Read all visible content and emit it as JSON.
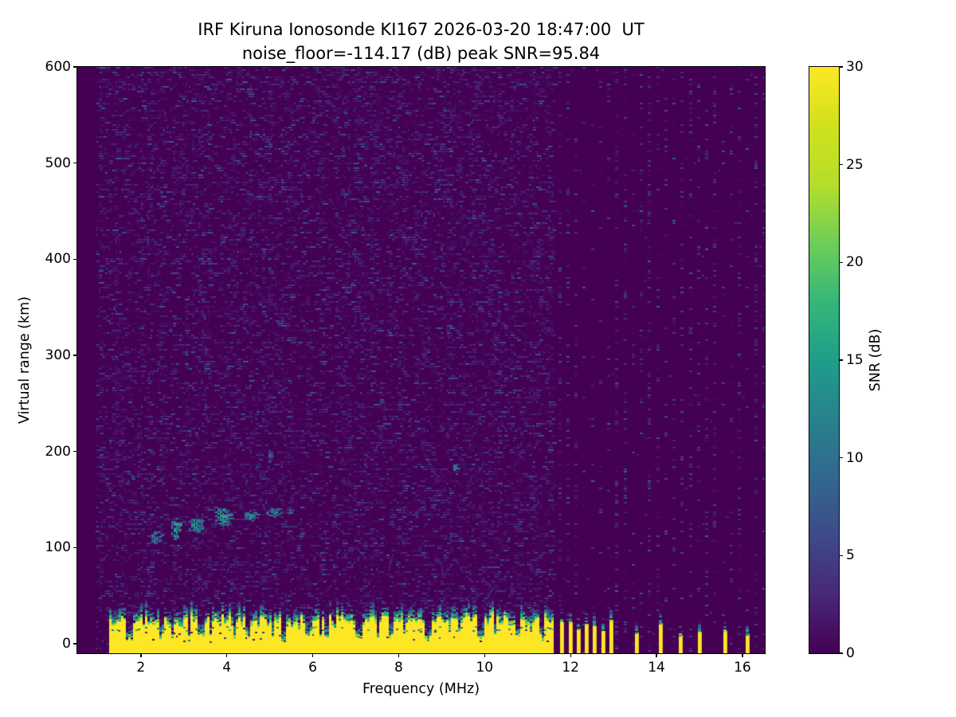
{
  "chart_data": {
    "type": "heatmap",
    "title_line1": "IRF Kiruna Ionosonde KI167 2026-03-20 18:47:00  UT",
    "title_line2": "noise_floor=-114.17 (dB) peak SNR=95.84",
    "station": "IRF Kiruna Ionosonde KI167",
    "timestamp_ut": "2026-03-20 18:47:00",
    "noise_floor_db": -114.17,
    "peak_snr_db": 95.84,
    "xlabel": "Frequency (MHz)",
    "ylabel": "Virtual range (km)",
    "colorbar_label": "SNR (dB)",
    "colormap": "viridis",
    "xlim": [
      0.52,
      16.52
    ],
    "ylim": [
      -10,
      600
    ],
    "clim": [
      0,
      30
    ],
    "xticks": [
      2,
      4,
      6,
      8,
      10,
      12,
      14,
      16
    ],
    "yticks": [
      0,
      100,
      200,
      300,
      400,
      500,
      600
    ],
    "colorbar_ticks": [
      0,
      5,
      10,
      15,
      20,
      25,
      30
    ],
    "features": {
      "data_start_mhz": 0.97,
      "noise": {
        "left_region_end_mhz": 11.58,
        "right_columns_start_mhz": 11.72,
        "right_column_spacing_mhz": 0.19,
        "typical_speckle_db": [
          0,
          8
        ]
      },
      "ground_band": {
        "freq_start_mhz": 1.28,
        "freq_end_mhz": 11.58,
        "top_km_mean": 24,
        "fade_km": 16,
        "solid_snr_db": 30,
        "gap_freqs_mhz": [
          1.7,
          2.45,
          3.4,
          4.45,
          5.3,
          5.9,
          6.3,
          7.05,
          7.8,
          8.65,
          9.9,
          10.75,
          11.3
        ]
      },
      "echo_trace": [
        {
          "freq_mhz": 2.35,
          "range_km": 110,
          "width_mhz": 0.3,
          "height_km": 16,
          "snr_db": 15
        },
        {
          "freq_mhz": 2.8,
          "range_km": 120,
          "width_mhz": 0.28,
          "height_km": 24,
          "snr_db": 17
        },
        {
          "freq_mhz": 3.25,
          "range_km": 123,
          "width_mhz": 0.38,
          "height_km": 16,
          "snr_db": 15
        },
        {
          "freq_mhz": 3.9,
          "range_km": 132,
          "width_mhz": 0.45,
          "height_km": 20,
          "snr_db": 17
        },
        {
          "freq_mhz": 4.55,
          "range_km": 134,
          "width_mhz": 0.35,
          "height_km": 12,
          "snr_db": 14
        },
        {
          "freq_mhz": 5.1,
          "range_km": 137,
          "width_mhz": 0.45,
          "height_km": 10,
          "snr_db": 14
        },
        {
          "freq_mhz": 5.45,
          "range_km": 138,
          "width_mhz": 0.2,
          "height_km": 6,
          "snr_db": 10
        }
      ],
      "isolated_echoes": [
        {
          "freq_mhz": 9.3,
          "range_km": 184,
          "width_mhz": 0.14,
          "height_km": 7,
          "snr_db": 16
        },
        {
          "freq_mhz": 5.0,
          "range_km": 197,
          "width_mhz": 0.14,
          "height_km": 12,
          "snr_db": 9
        }
      ],
      "rfi_stripes": {
        "dense_group_mhz": [
          11.76,
          11.96,
          12.15,
          12.34,
          12.53,
          12.73,
          12.92
        ],
        "sparse_mhz": [
          13.5,
          14.07,
          14.52,
          14.98,
          15.56,
          16.08
        ],
        "stripe_width_mhz": 0.09,
        "yellow_top_km_range": [
          10,
          26
        ],
        "cap_fade_km": 16
      }
    }
  }
}
